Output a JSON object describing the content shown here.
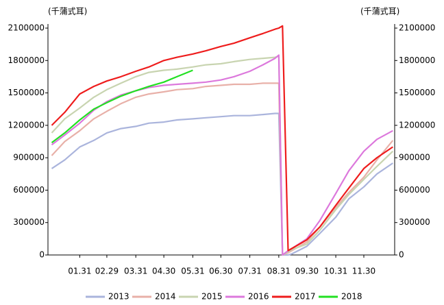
{
  "chart_data": {
    "type": "line",
    "y_label": "(千蒲式耳)",
    "y2_label": "(千蒲式耳)",
    "x": [
      1,
      15,
      31,
      46,
      60,
      75,
      91,
      105,
      121,
      135,
      152,
      166,
      182,
      196,
      213,
      227,
      240,
      244,
      248,
      254,
      258,
      274,
      288,
      305,
      319,
      335,
      349,
      366
    ],
    "xlim": [
      -3,
      368
    ],
    "xticks": [
      {
        "value": 31,
        "label": "01.31"
      },
      {
        "value": 60,
        "label": "02.29"
      },
      {
        "value": 91,
        "label": "03.31"
      },
      {
        "value": 121,
        "label": "04.30"
      },
      {
        "value": 152,
        "label": "05.31"
      },
      {
        "value": 182,
        "label": "06.30"
      },
      {
        "value": 213,
        "label": "07.31"
      },
      {
        "value": 244,
        "label": "08.31"
      },
      {
        "value": 274,
        "label": "09.30"
      },
      {
        "value": 305,
        "label": "10.31"
      },
      {
        "value": 335,
        "label": "11.30"
      }
    ],
    "ylim": [
      0,
      2100000
    ],
    "yticks": [
      0,
      300000,
      600000,
      900000,
      1200000,
      1500000,
      1800000,
      2100000
    ],
    "legend": "bottom",
    "series": [
      {
        "name": "2013",
        "color": "#aab4dc",
        "values": [
          800000,
          880000,
          1000000,
          1060000,
          1130000,
          1170000,
          1190000,
          1220000,
          1230000,
          1250000,
          1260000,
          1270000,
          1280000,
          1290000,
          1290000,
          1300000,
          1310000,
          1310000,
          0,
          0,
          10000,
          80000,
          200000,
          350000,
          520000,
          630000,
          750000,
          850000
        ]
      },
      {
        "name": "2014",
        "color": "#e8b0a8",
        "values": [
          920000,
          1050000,
          1150000,
          1260000,
          1330000,
          1400000,
          1460000,
          1490000,
          1510000,
          1530000,
          1540000,
          1560000,
          1570000,
          1580000,
          1580000,
          1590000,
          1590000,
          1590000,
          0,
          20000,
          40000,
          120000,
          260000,
          440000,
          580000,
          720000,
          880000,
          1060000
        ]
      },
      {
        "name": "2015",
        "color": "#c8d4b0",
        "values": [
          1130000,
          1260000,
          1360000,
          1460000,
          1530000,
          1590000,
          1650000,
          1690000,
          1710000,
          1720000,
          1740000,
          1760000,
          1770000,
          1790000,
          1810000,
          1820000,
          1830000,
          1840000,
          0,
          30000,
          50000,
          100000,
          230000,
          420000,
          560000,
          700000,
          820000,
          960000
        ]
      },
      {
        "name": "2016",
        "color": "#dc78dc",
        "values": [
          1020000,
          1110000,
          1220000,
          1340000,
          1420000,
          1480000,
          1520000,
          1550000,
          1570000,
          1580000,
          1590000,
          1600000,
          1620000,
          1650000,
          1700000,
          1760000,
          1820000,
          1850000,
          0,
          40000,
          60000,
          150000,
          320000,
          570000,
          780000,
          960000,
          1070000,
          1150000
        ]
      },
      {
        "name": "2017",
        "color": "#ee1c1c",
        "values": [
          1200000,
          1320000,
          1490000,
          1560000,
          1610000,
          1650000,
          1700000,
          1740000,
          1800000,
          1830000,
          1860000,
          1890000,
          1930000,
          1960000,
          2010000,
          2050000,
          2090000,
          2100000,
          2120000,
          40000,
          60000,
          140000,
          260000,
          460000,
          620000,
          800000,
          900000,
          1000000
        ]
      },
      {
        "name": "2018",
        "color": "#22e022",
        "values": [
          1040000,
          1130000,
          1250000,
          1350000,
          1410000,
          1470000,
          1520000,
          1560000,
          1600000,
          1650000,
          1710000,
          null,
          null,
          null,
          null,
          null,
          null,
          null,
          null,
          null,
          null,
          null,
          null,
          null,
          null,
          null,
          null,
          null
        ]
      }
    ]
  }
}
